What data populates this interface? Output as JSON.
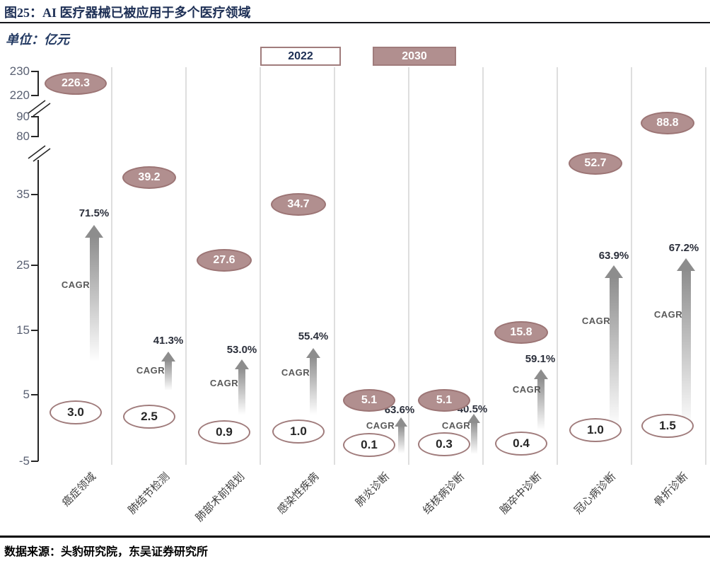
{
  "figure": {
    "title": "图25：AI 医疗器械已被应用于多个医疗领域",
    "unit_label": "单位：亿元",
    "source": "数据来源：头豹研究院，东吴证券研究所"
  },
  "legend": {
    "items": [
      {
        "label": "2022",
        "style": "outline"
      },
      {
        "label": "2030",
        "style": "filled"
      }
    ]
  },
  "chart_data": {
    "type": "scatter",
    "title": "AI 医疗器械已被应用于多个医疗领域",
    "subtitle": "图25",
    "ylabel": "亿元",
    "categories": [
      "癌症领域",
      "肺结节检测",
      "肺部术前规划",
      "感染性疾病",
      "肺炎诊断",
      "结核病诊断",
      "脑卒中诊断",
      "冠心病诊断",
      "骨折诊断"
    ],
    "series": [
      {
        "name": "2022",
        "values": [
          3.0,
          2.5,
          0.9,
          1.0,
          0.1,
          0.3,
          0.4,
          1.0,
          1.5
        ]
      },
      {
        "name": "2030",
        "values": [
          226.3,
          39.2,
          27.6,
          34.7,
          5.1,
          5.1,
          15.8,
          52.7,
          88.8
        ]
      }
    ],
    "cagr_label": "CAGR",
    "cagr_percent": [
      "71.5%",
      "41.3%",
      "53.0%",
      "55.4%",
      "63.6%",
      "40.5%",
      "59.1%",
      "63.9%",
      "67.2%"
    ],
    "y_axis_ticks": [
      230,
      220,
      90,
      80,
      35,
      25,
      15,
      5,
      -5
    ],
    "y_axis_breaks": [
      [
        220,
        90
      ],
      [
        80,
        40
      ]
    ],
    "ylim": [
      -5,
      230
    ],
    "grid": "vertical-separators-only",
    "legend_position": "top"
  },
  "colors": {
    "bubble_2030_fill": "#b18f8f",
    "bubble_border": "#9c7575",
    "navy_text": "#1d2f55",
    "arrow_gray": "#8d8d8d",
    "gridline": "#dedede",
    "tick_text": "#5a6173",
    "axis_line": "#262626"
  }
}
